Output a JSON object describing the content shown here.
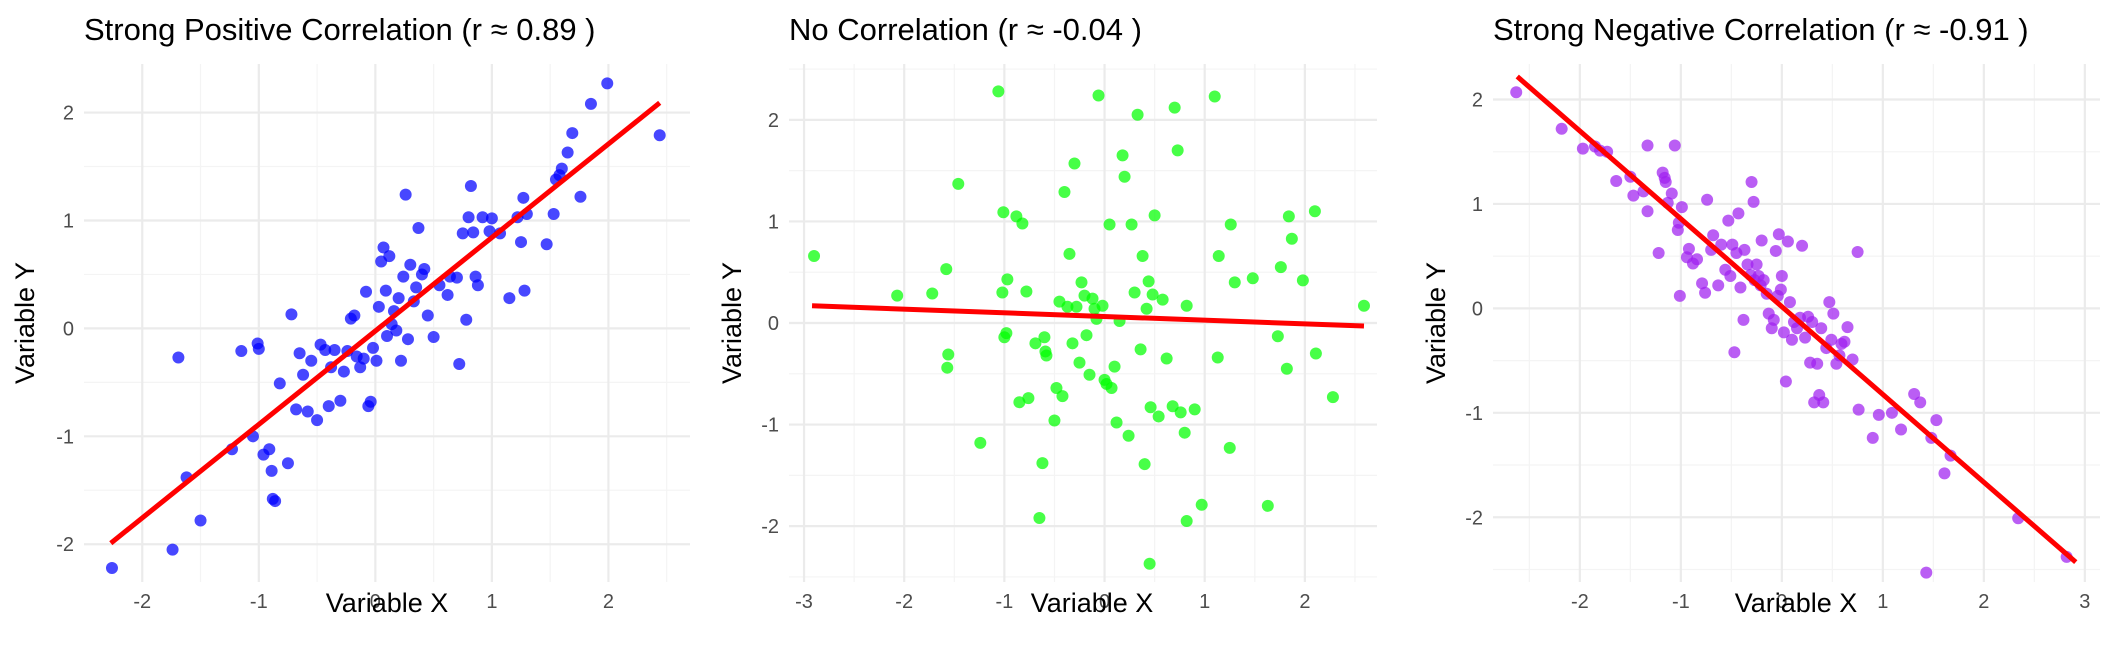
{
  "chart_data": [
    {
      "type": "scatter",
      "title": "Strong Positive Correlation (r ≈ 0.89 )",
      "xlabel": "Variable X",
      "ylabel": "Variable Y",
      "xlim": [
        -2.5,
        2.7
      ],
      "ylim": [
        -2.35,
        2.45
      ],
      "x_ticks": [
        -2,
        -1,
        0,
        1,
        2
      ],
      "y_ticks": [
        -2,
        -1,
        0,
        1,
        2
      ],
      "point_color": "#0000ff",
      "line_color": "#ff0000",
      "fit_line": {
        "x": [
          -2.27,
          2.44
        ],
        "y": [
          -1.99,
          2.09
        ]
      },
      "points": [
        [
          -2.26,
          -2.22
        ],
        [
          -1.74,
          -2.05
        ],
        [
          -1.69,
          -0.27
        ],
        [
          -1.62,
          -1.38
        ],
        [
          -1.5,
          -1.78
        ],
        [
          -1.23,
          -1.12
        ],
        [
          -1.15,
          -0.21
        ],
        [
          -1.05,
          -1.0
        ],
        [
          -1.01,
          -0.14
        ],
        [
          -1.0,
          -0.19
        ],
        [
          -0.96,
          -1.17
        ],
        [
          -0.91,
          -1.12
        ],
        [
          -0.89,
          -1.32
        ],
        [
          -0.88,
          -1.58
        ],
        [
          -0.86,
          -1.6
        ],
        [
          -0.82,
          -0.51
        ],
        [
          -0.75,
          -1.25
        ],
        [
          -0.72,
          0.13
        ],
        [
          -0.68,
          -0.75
        ],
        [
          -0.65,
          -0.23
        ],
        [
          -0.62,
          -0.43
        ],
        [
          -0.58,
          -0.77
        ],
        [
          -0.55,
          -0.3
        ],
        [
          -0.5,
          -0.85
        ],
        [
          -0.47,
          -0.15
        ],
        [
          -0.43,
          -0.2
        ],
        [
          -0.4,
          -0.72
        ],
        [
          -0.38,
          -0.36
        ],
        [
          -0.35,
          -0.2
        ],
        [
          -0.3,
          -0.67
        ],
        [
          -0.27,
          -0.4
        ],
        [
          -0.24,
          -0.21
        ],
        [
          -0.21,
          0.09
        ],
        [
          -0.18,
          0.12
        ],
        [
          -0.16,
          -0.26
        ],
        [
          -0.13,
          -0.36
        ],
        [
          -0.1,
          -0.28
        ],
        [
          -0.08,
          0.34
        ],
        [
          -0.06,
          -0.72
        ],
        [
          -0.04,
          -0.68
        ],
        [
          -0.02,
          -0.18
        ],
        [
          0.01,
          -0.3
        ],
        [
          0.03,
          0.2
        ],
        [
          0.05,
          0.62
        ],
        [
          0.07,
          0.75
        ],
        [
          0.09,
          0.35
        ],
        [
          0.1,
          -0.07
        ],
        [
          0.12,
          0.67
        ],
        [
          0.14,
          0.04
        ],
        [
          0.16,
          0.16
        ],
        [
          0.18,
          -0.02
        ],
        [
          0.2,
          0.28
        ],
        [
          0.22,
          -0.3
        ],
        [
          0.24,
          0.48
        ],
        [
          0.26,
          1.24
        ],
        [
          0.28,
          -0.1
        ],
        [
          0.3,
          0.59
        ],
        [
          0.33,
          0.25
        ],
        [
          0.35,
          0.38
        ],
        [
          0.37,
          0.93
        ],
        [
          0.4,
          0.5
        ],
        [
          0.42,
          0.55
        ],
        [
          0.45,
          0.12
        ],
        [
          0.5,
          -0.08
        ],
        [
          0.55,
          0.4
        ],
        [
          0.62,
          0.31
        ],
        [
          0.64,
          0.48
        ],
        [
          0.7,
          0.47
        ],
        [
          0.72,
          -0.33
        ],
        [
          0.75,
          0.88
        ],
        [
          0.78,
          0.08
        ],
        [
          0.8,
          1.03
        ],
        [
          0.82,
          1.32
        ],
        [
          0.84,
          0.89
        ],
        [
          0.86,
          0.48
        ],
        [
          0.88,
          0.4
        ],
        [
          0.92,
          1.03
        ],
        [
          0.98,
          0.9
        ],
        [
          1.0,
          1.02
        ],
        [
          1.07,
          0.88
        ],
        [
          1.15,
          0.28
        ],
        [
          1.22,
          1.03
        ],
        [
          1.25,
          0.8
        ],
        [
          1.27,
          1.21
        ],
        [
          1.28,
          0.35
        ],
        [
          1.3,
          1.06
        ],
        [
          1.47,
          0.78
        ],
        [
          1.53,
          1.06
        ],
        [
          1.55,
          1.38
        ],
        [
          1.58,
          1.42
        ],
        [
          1.6,
          1.48
        ],
        [
          1.65,
          1.63
        ],
        [
          1.69,
          1.81
        ],
        [
          1.76,
          1.22
        ],
        [
          1.85,
          2.08
        ],
        [
          1.99,
          2.27
        ],
        [
          2.44,
          1.79
        ]
      ]
    },
    {
      "type": "scatter",
      "title": "No Correlation (r ≈ -0.04 )",
      "xlabel": "Variable X",
      "ylabel": "Variable Y",
      "xlim": [
        -3.15,
        2.72
      ],
      "ylim": [
        -2.55,
        2.55
      ],
      "x_ticks": [
        -3,
        -2,
        -1,
        0,
        1,
        2
      ],
      "y_ticks": [
        -2,
        -1,
        0,
        1,
        2
      ],
      "point_color": "#00ff00",
      "line_color": "#ff0000",
      "fit_line": {
        "x": [
          -2.92,
          2.59
        ],
        "y": [
          0.17,
          -0.03
        ]
      },
      "points": [
        [
          -2.9,
          0.66
        ],
        [
          -2.07,
          0.27
        ],
        [
          -1.72,
          0.29
        ],
        [
          -1.58,
          0.53
        ],
        [
          -1.57,
          -0.44
        ],
        [
          -1.56,
          -0.31
        ],
        [
          -1.46,
          1.37
        ],
        [
          -1.24,
          -1.18
        ],
        [
          -1.06,
          2.28
        ],
        [
          -1.02,
          0.3
        ],
        [
          -1.01,
          1.09
        ],
        [
          -1.0,
          -0.14
        ],
        [
          -0.98,
          -0.1
        ],
        [
          -0.97,
          0.43
        ],
        [
          -0.88,
          1.05
        ],
        [
          -0.85,
          -0.78
        ],
        [
          -0.82,
          0.98
        ],
        [
          -0.78,
          0.31
        ],
        [
          -0.76,
          -0.74
        ],
        [
          -0.69,
          -0.2
        ],
        [
          -0.65,
          -1.92
        ],
        [
          -0.62,
          -1.38
        ],
        [
          -0.6,
          -0.14
        ],
        [
          -0.59,
          -0.28
        ],
        [
          -0.58,
          -0.32
        ],
        [
          -0.5,
          -0.96
        ],
        [
          -0.48,
          -0.64
        ],
        [
          -0.45,
          0.21
        ],
        [
          -0.42,
          -0.72
        ],
        [
          -0.4,
          1.29
        ],
        [
          -0.37,
          0.16
        ],
        [
          -0.35,
          0.68
        ],
        [
          -0.32,
          -0.2
        ],
        [
          -0.3,
          1.57
        ],
        [
          -0.28,
          0.16
        ],
        [
          -0.25,
          -0.39
        ],
        [
          -0.23,
          0.4
        ],
        [
          -0.2,
          0.27
        ],
        [
          -0.18,
          -0.12
        ],
        [
          -0.15,
          -0.51
        ],
        [
          -0.12,
          0.24
        ],
        [
          -0.1,
          0.14
        ],
        [
          -0.08,
          0.04
        ],
        [
          -0.06,
          2.24
        ],
        [
          -0.02,
          0.17
        ],
        [
          0.0,
          -0.56
        ],
        [
          0.02,
          -0.6
        ],
        [
          0.05,
          0.97
        ],
        [
          0.07,
          -0.64
        ],
        [
          0.1,
          -0.43
        ],
        [
          0.12,
          -0.98
        ],
        [
          0.15,
          0.02
        ],
        [
          0.18,
          1.65
        ],
        [
          0.2,
          1.44
        ],
        [
          0.24,
          -1.11
        ],
        [
          0.27,
          0.97
        ],
        [
          0.3,
          0.3
        ],
        [
          0.33,
          2.05
        ],
        [
          0.36,
          -0.26
        ],
        [
          0.38,
          0.66
        ],
        [
          0.4,
          -1.39
        ],
        [
          0.42,
          0.14
        ],
        [
          0.44,
          0.41
        ],
        [
          0.45,
          -2.37
        ],
        [
          0.46,
          -0.83
        ],
        [
          0.48,
          0.28
        ],
        [
          0.5,
          1.06
        ],
        [
          0.54,
          -0.92
        ],
        [
          0.58,
          0.23
        ],
        [
          0.62,
          -0.35
        ],
        [
          0.68,
          -0.82
        ],
        [
          0.7,
          2.12
        ],
        [
          0.73,
          1.7
        ],
        [
          0.76,
          -0.88
        ],
        [
          0.8,
          -1.08
        ],
        [
          0.82,
          -1.95
        ],
        [
          0.82,
          0.17
        ],
        [
          0.9,
          -0.85
        ],
        [
          0.97,
          -1.79
        ],
        [
          1.1,
          2.23
        ],
        [
          1.13,
          -0.34
        ],
        [
          1.14,
          0.66
        ],
        [
          1.25,
          -1.23
        ],
        [
          1.26,
          0.97
        ],
        [
          1.3,
          0.4
        ],
        [
          1.48,
          0.44
        ],
        [
          1.63,
          -1.8
        ],
        [
          1.73,
          -0.13
        ],
        [
          1.76,
          0.55
        ],
        [
          1.82,
          -0.45
        ],
        [
          1.84,
          1.05
        ],
        [
          1.87,
          0.83
        ],
        [
          1.98,
          0.42
        ],
        [
          2.1,
          1.1
        ],
        [
          2.11,
          -0.3
        ],
        [
          2.28,
          -0.73
        ],
        [
          2.59,
          0.17
        ]
      ]
    },
    {
      "type": "scatter",
      "title": "Strong Negative Correlation (r ≈ -0.91 )",
      "xlabel": "Variable X",
      "ylabel": "Variable Y",
      "xlim": [
        -2.86,
        3.15
      ],
      "ylim": [
        -2.62,
        2.34
      ],
      "x_ticks": [
        -2,
        -1,
        0,
        1,
        2,
        3
      ],
      "y_ticks": [
        -2,
        -1,
        0,
        1,
        2
      ],
      "point_color": "#a020f0",
      "line_color": "#ff0000",
      "fit_line": {
        "x": [
          -2.62,
          2.91
        ],
        "y": [
          2.22,
          -2.43
        ]
      },
      "points": [
        [
          -2.63,
          2.07
        ],
        [
          -2.18,
          1.72
        ],
        [
          -1.97,
          1.53
        ],
        [
          -1.85,
          1.55
        ],
        [
          -1.8,
          1.51
        ],
        [
          -1.73,
          1.5
        ],
        [
          -1.64,
          1.22
        ],
        [
          -1.5,
          1.26
        ],
        [
          -1.47,
          1.08
        ],
        [
          -1.37,
          1.12
        ],
        [
          -1.33,
          1.56
        ],
        [
          -1.33,
          0.93
        ],
        [
          -1.22,
          0.53
        ],
        [
          -1.18,
          1.3
        ],
        [
          -1.16,
          1.25
        ],
        [
          -1.15,
          1.21
        ],
        [
          -1.13,
          1.01
        ],
        [
          -1.09,
          1.1
        ],
        [
          -1.06,
          1.56
        ],
        [
          -1.03,
          0.75
        ],
        [
          -1.02,
          0.82
        ],
        [
          -1.01,
          0.12
        ],
        [
          -0.99,
          0.97
        ],
        [
          -0.94,
          0.49
        ],
        [
          -0.92,
          0.57
        ],
        [
          -0.88,
          0.43
        ],
        [
          -0.84,
          0.47
        ],
        [
          -0.79,
          0.24
        ],
        [
          -0.76,
          0.15
        ],
        [
          -0.74,
          1.04
        ],
        [
          -0.7,
          0.56
        ],
        [
          -0.68,
          0.7
        ],
        [
          -0.63,
          0.22
        ],
        [
          -0.6,
          0.61
        ],
        [
          -0.56,
          0.37
        ],
        [
          -0.53,
          0.84
        ],
        [
          -0.51,
          0.31
        ],
        [
          -0.49,
          0.61
        ],
        [
          -0.47,
          -0.42
        ],
        [
          -0.45,
          0.53
        ],
        [
          -0.43,
          0.91
        ],
        [
          -0.41,
          0.2
        ],
        [
          -0.38,
          -0.11
        ],
        [
          -0.37,
          0.56
        ],
        [
          -0.34,
          0.42
        ],
        [
          -0.31,
          0.32
        ],
        [
          -0.3,
          1.21
        ],
        [
          -0.28,
          1.02
        ],
        [
          -0.27,
          0.27
        ],
        [
          -0.25,
          0.42
        ],
        [
          -0.23,
          0.31
        ],
        [
          -0.21,
          0.22
        ],
        [
          -0.2,
          0.65
        ],
        [
          -0.18,
          0.27
        ],
        [
          -0.15,
          0.14
        ],
        [
          -0.13,
          -0.05
        ],
        [
          -0.1,
          -0.19
        ],
        [
          -0.08,
          -0.11
        ],
        [
          -0.06,
          0.55
        ],
        [
          -0.04,
          0.12
        ],
        [
          -0.03,
          0.71
        ],
        [
          -0.01,
          0.18
        ],
        [
          0.0,
          0.31
        ],
        [
          0.02,
          -0.23
        ],
        [
          0.04,
          -0.7
        ],
        [
          0.06,
          0.64
        ],
        [
          0.08,
          0.06
        ],
        [
          0.1,
          -0.3
        ],
        [
          0.12,
          -0.13
        ],
        [
          0.15,
          -0.19
        ],
        [
          0.18,
          -0.09
        ],
        [
          0.2,
          0.6
        ],
        [
          0.23,
          -0.28
        ],
        [
          0.26,
          -0.08
        ],
        [
          0.28,
          -0.52
        ],
        [
          0.3,
          -0.13
        ],
        [
          0.32,
          -0.9
        ],
        [
          0.35,
          -0.53
        ],
        [
          0.37,
          -0.83
        ],
        [
          0.39,
          -0.19
        ],
        [
          0.41,
          -0.9
        ],
        [
          0.44,
          -0.38
        ],
        [
          0.47,
          0.06
        ],
        [
          0.49,
          -0.3
        ],
        [
          0.51,
          -0.05
        ],
        [
          0.54,
          -0.53
        ],
        [
          0.57,
          -0.45
        ],
        [
          0.59,
          -0.34
        ],
        [
          0.62,
          -0.32
        ],
        [
          0.65,
          -0.18
        ],
        [
          0.7,
          -0.49
        ],
        [
          0.75,
          0.54
        ],
        [
          0.76,
          -0.97
        ],
        [
          0.9,
          -1.24
        ],
        [
          0.96,
          -1.02
        ],
        [
          1.09,
          -1.0
        ],
        [
          1.18,
          -1.16
        ],
        [
          1.31,
          -0.82
        ],
        [
          1.37,
          -0.9
        ],
        [
          1.43,
          -2.53
        ],
        [
          1.48,
          -1.24
        ],
        [
          1.53,
          -1.07
        ],
        [
          1.61,
          -1.58
        ],
        [
          1.67,
          -1.41
        ],
        [
          2.34,
          -2.01
        ],
        [
          2.82,
          -2.38
        ]
      ]
    }
  ]
}
